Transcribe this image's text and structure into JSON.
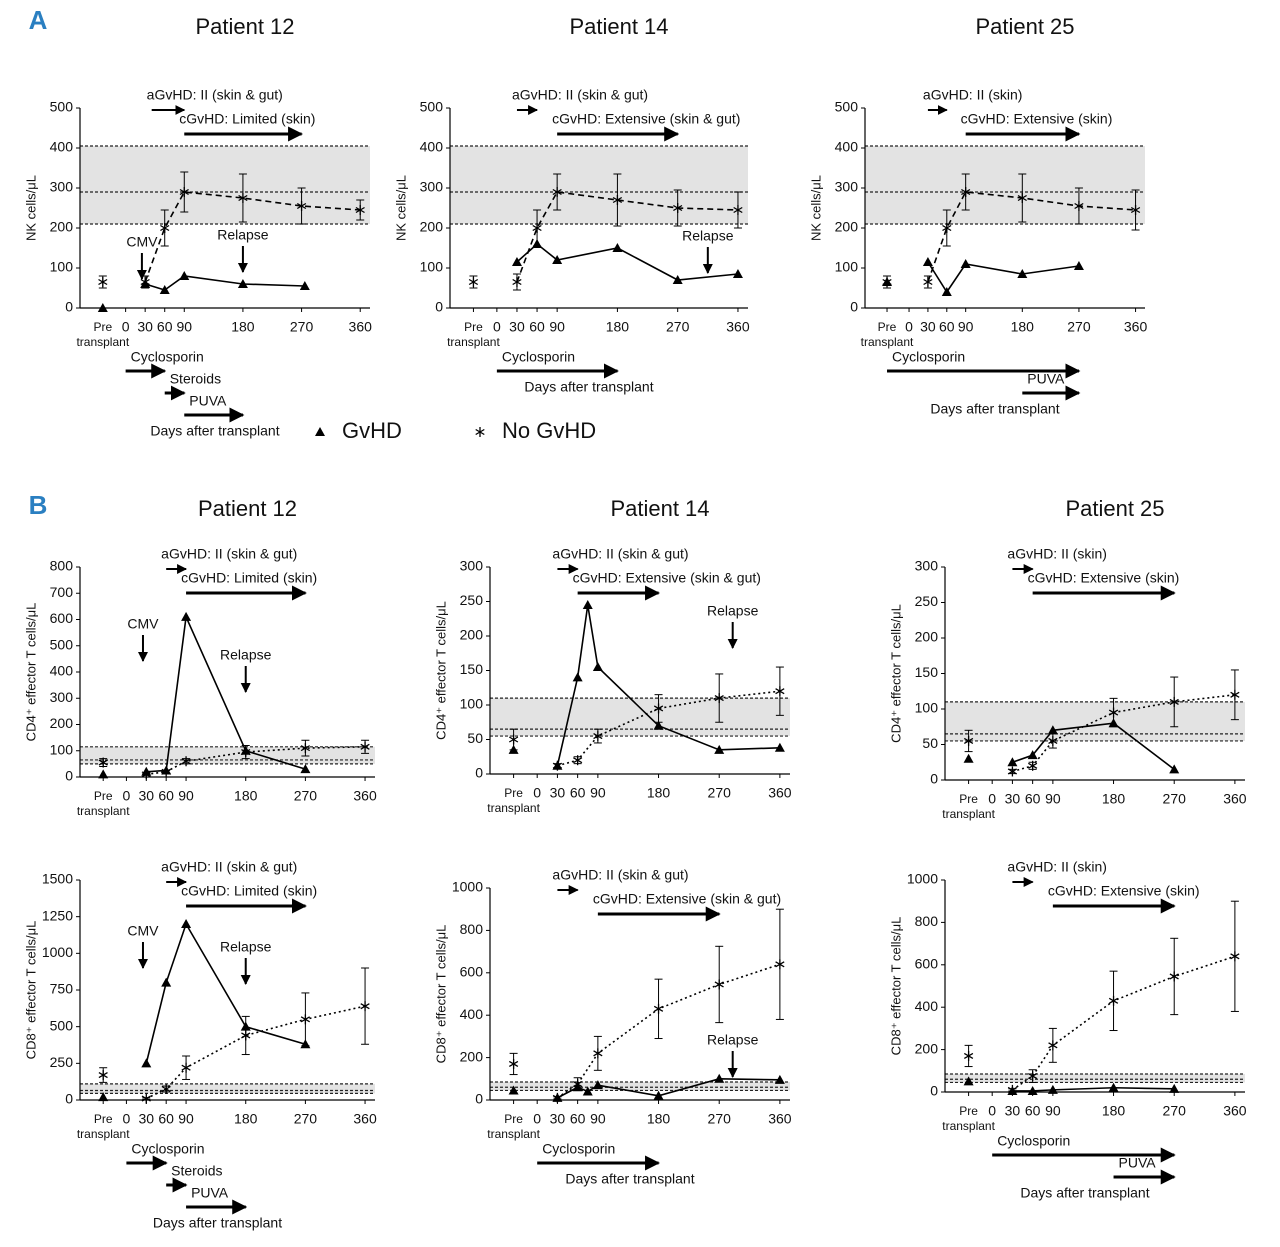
{
  "panels": [
    "A",
    "B"
  ],
  "legend": [
    {
      "name": "GvHD",
      "marker": "triangle"
    },
    {
      "name": "No GvHD",
      "marker": "asterisk"
    }
  ],
  "chart_data": [
    {
      "type": "line",
      "title": "Patient 12",
      "ylabel": "NK cells/μL",
      "ylim": [
        0,
        500
      ],
      "yticks": [
        0,
        100,
        200,
        300,
        400,
        500
      ],
      "xlim": [
        -70,
        375
      ],
      "xticks": [
        {
          "value": -35,
          "label": "Pre\ntransplant"
        },
        0,
        30,
        60,
        90,
        180,
        270,
        360
      ],
      "reference_range": {
        "low": 210,
        "mid": 290,
        "high": 405
      },
      "series": [
        {
          "name": "GvHD",
          "marker": "triangle",
          "line_style": "solid",
          "color": "#000000",
          "pre": 0,
          "x": [
            30,
            60,
            90,
            180,
            275
          ],
          "values": [
            60,
            45,
            80,
            60,
            55
          ]
        },
        {
          "name": "No GvHD",
          "marker": "asterisk",
          "line_style": "dashed",
          "color": "#000000",
          "pre": 65,
          "pre_error": 15,
          "x": [
            30,
            60,
            90,
            180,
            270,
            360
          ],
          "values": [
            65,
            200,
            290,
            275,
            255,
            245
          ],
          "errors": [
            15,
            45,
            50,
            60,
            45,
            25
          ]
        }
      ],
      "gvhd": [
        {
          "text": "aGvHD: II (skin & gut)",
          "start": 40,
          "end": 90
        },
        {
          "text": "cGvHD: Limited (skin)",
          "start": 90,
          "end": 270
        }
      ],
      "events": [
        {
          "text": "CMV",
          "day": 25
        },
        {
          "text": "Relapse",
          "day": 180
        }
      ],
      "treatments": [
        {
          "text": "Cyclosporin",
          "start": 0,
          "end": 60
        },
        {
          "text": "Steroids",
          "start": 60,
          "end": 90
        },
        {
          "text": "PUVA",
          "start": 90,
          "end": 180
        }
      ],
      "xlabel": "Days after transplant"
    },
    {
      "type": "line",
      "title": "Patient 14",
      "ylabel": "NK cells/μL",
      "ylim": [
        0,
        500
      ],
      "yticks": [
        0,
        100,
        200,
        300,
        400,
        500
      ],
      "xlim": [
        -70,
        375
      ],
      "xticks": [
        {
          "value": -35,
          "label": "Pre\ntransplant"
        },
        0,
        30,
        60,
        90,
        180,
        270,
        360
      ],
      "reference_range": {
        "low": 210,
        "mid": 290,
        "high": 405
      },
      "series": [
        {
          "name": "GvHD",
          "marker": "triangle",
          "line_style": "solid",
          "color": "#000000",
          "x": [
            30,
            60,
            90,
            180,
            270,
            360
          ],
          "values": [
            115,
            160,
            120,
            150,
            70,
            85
          ]
        },
        {
          "name": "No GvHD",
          "marker": "asterisk",
          "line_style": "dashed",
          "color": "#000000",
          "pre": 65,
          "pre_error": 15,
          "x": [
            30,
            60,
            90,
            180,
            270,
            360
          ],
          "values": [
            65,
            200,
            290,
            270,
            250,
            245
          ],
          "errors": [
            20,
            45,
            45,
            65,
            45,
            45
          ]
        }
      ],
      "gvhd": [
        {
          "text": "aGvHD: II (skin & gut)",
          "start": 30,
          "end": 60
        },
        {
          "text": "cGvHD: Extensive (skin & gut)",
          "start": 90,
          "end": 270
        }
      ],
      "events": [
        {
          "text": "Relapse",
          "day": 315
        }
      ],
      "treatments": [
        {
          "text": "Cyclosporin",
          "start": 0,
          "end": 180
        }
      ],
      "xlabel": "Days after transplant"
    },
    {
      "type": "line",
      "title": "Patient 25",
      "ylabel": "NK cells/μL",
      "ylim": [
        0,
        500
      ],
      "yticks": [
        0,
        100,
        200,
        300,
        400,
        500
      ],
      "xlim": [
        -70,
        375
      ],
      "xticks": [
        {
          "value": -35,
          "label": "Pre\ntransplant"
        },
        0,
        30,
        60,
        90,
        180,
        270,
        360
      ],
      "reference_range": {
        "low": 210,
        "mid": 290,
        "high": 405
      },
      "series": [
        {
          "name": "GvHD",
          "marker": "triangle",
          "line_style": "solid",
          "color": "#000000",
          "pre": 65,
          "x": [
            30,
            60,
            90,
            180,
            270
          ],
          "values": [
            115,
            40,
            110,
            85,
            105
          ]
        },
        {
          "name": "No GvHD",
          "marker": "asterisk",
          "line_style": "dashed",
          "color": "#000000",
          "pre": 65,
          "pre_error": 15,
          "x": [
            30,
            60,
            90,
            180,
            270,
            360
          ],
          "values": [
            65,
            200,
            290,
            275,
            255,
            245
          ],
          "errors": [
            15,
            45,
            45,
            60,
            45,
            50
          ]
        }
      ],
      "gvhd": [
        {
          "text": "aGvHD: II (skin)",
          "start": 30,
          "end": 60
        },
        {
          "text": "cGvHD: Extensive (skin)",
          "start": 90,
          "end": 270
        }
      ],
      "events": [],
      "treatments": [
        {
          "text": "Cyclosporin",
          "start": -35,
          "end": 270
        },
        {
          "text": "PUVA",
          "start": 180,
          "end": 270
        }
      ],
      "xlabel": "Days after transplant"
    },
    {
      "type": "line",
      "title": "Patient 12",
      "ylabel": "CD4⁺ effector T cells/μL",
      "ylim": [
        0,
        800
      ],
      "yticks": [
        0,
        100,
        200,
        300,
        400,
        500,
        600,
        700,
        800
      ],
      "xlim": [
        -70,
        375
      ],
      "xticks": [
        {
          "value": -35,
          "label": "Pre\ntransplant"
        },
        0,
        30,
        60,
        90,
        180,
        270,
        360
      ],
      "reference_range": {
        "low": 50,
        "mid": 65,
        "high": 115
      },
      "series": [
        {
          "name": "GvHD",
          "marker": "triangle",
          "line_style": "solid",
          "color": "#000000",
          "pre": 10,
          "x": [
            30,
            60,
            90,
            180,
            270
          ],
          "values": [
            20,
            25,
            610,
            100,
            30
          ]
        },
        {
          "name": "No GvHD",
          "marker": "asterisk",
          "line_style": "dotted",
          "color": "#000000",
          "pre": 55,
          "pre_error": 15,
          "x": [
            30,
            60,
            90,
            180,
            270,
            360
          ],
          "values": [
            10,
            20,
            60,
            95,
            110,
            115
          ],
          "errors": [
            3,
            5,
            10,
            25,
            30,
            25
          ]
        }
      ],
      "gvhd": [
        {
          "text": "aGvHD: II (skin & gut)",
          "start": 60,
          "end": 90
        },
        {
          "text": "cGvHD: Limited (skin)",
          "start": 90,
          "end": 270
        }
      ],
      "events": [
        {
          "text": "CMV",
          "day": 25
        },
        {
          "text": "Relapse",
          "day": 180
        }
      ],
      "treatments": []
    },
    {
      "type": "line",
      "title": "Patient 14",
      "ylabel": "CD4⁺ effector T cells/μL",
      "ylim": [
        0,
        300
      ],
      "yticks": [
        0,
        50,
        100,
        150,
        200,
        250,
        300
      ],
      "xlim": [
        -70,
        375
      ],
      "xticks": [
        {
          "value": -35,
          "label": "Pre\ntransplant"
        },
        0,
        30,
        60,
        90,
        180,
        270,
        360
      ],
      "reference_range": {
        "low": 55,
        "mid": 65,
        "high": 110
      },
      "series": [
        {
          "name": "GvHD",
          "marker": "triangle",
          "line_style": "solid",
          "color": "#000000",
          "pre": 35,
          "x": [
            30,
            60,
            75,
            90,
            180,
            270,
            360
          ],
          "values": [
            12,
            140,
            245,
            155,
            70,
            35,
            38
          ]
        },
        {
          "name": "No GvHD",
          "marker": "asterisk",
          "line_style": "dotted",
          "color": "#000000",
          "pre": 50,
          "pre_error": 15,
          "x": [
            30,
            60,
            90,
            180,
            270,
            360
          ],
          "values": [
            12,
            20,
            55,
            95,
            110,
            120
          ],
          "errors": [
            3,
            5,
            10,
            20,
            35,
            35
          ]
        }
      ],
      "gvhd": [
        {
          "text": "aGvHD: II (skin & gut)",
          "start": 30,
          "end": 60
        },
        {
          "text": "cGvHD: Extensive (skin & gut)",
          "start": 60,
          "end": 180
        }
      ],
      "events": [
        {
          "text": "Relapse",
          "day": 290
        }
      ],
      "treatments": []
    },
    {
      "type": "line",
      "title": "Patient 25",
      "ylabel": "CD4⁺ effector T cells/μL",
      "ylim": [
        0,
        300
      ],
      "yticks": [
        0,
        50,
        100,
        150,
        200,
        250,
        300
      ],
      "xlim": [
        -70,
        375
      ],
      "xticks": [
        {
          "value": -35,
          "label": "Pre\ntransplant"
        },
        0,
        30,
        60,
        90,
        180,
        270,
        360
      ],
      "reference_range": {
        "low": 55,
        "mid": 65,
        "high": 110
      },
      "series": [
        {
          "name": "GvHD",
          "marker": "triangle",
          "line_style": "solid",
          "color": "#000000",
          "pre": 30,
          "x": [
            30,
            60,
            90,
            180,
            270
          ],
          "values": [
            25,
            35,
            70,
            80,
            15
          ]
        },
        {
          "name": "No GvHD",
          "marker": "asterisk",
          "line_style": "dotted",
          "color": "#000000",
          "pre": 55,
          "pre_error": 15,
          "x": [
            30,
            60,
            90,
            180,
            270,
            360
          ],
          "values": [
            12,
            20,
            55,
            95,
            110,
            120
          ],
          "errors": [
            3,
            5,
            10,
            20,
            35,
            35
          ]
        }
      ],
      "gvhd": [
        {
          "text": "aGvHD: II (skin)",
          "start": 30,
          "end": 60
        },
        {
          "text": "cGvHD: Extensive (skin)",
          "start": 60,
          "end": 270
        }
      ],
      "events": [],
      "treatments": []
    },
    {
      "type": "line",
      "ylabel": "CD8⁺ effector T cells/μL",
      "ylim": [
        0,
        1500
      ],
      "yticks": [
        0,
        250,
        500,
        750,
        1000,
        1250,
        1500
      ],
      "xlim": [
        -70,
        375
      ],
      "xticks": [
        {
          "value": -35,
          "label": "Pre\ntransplant"
        },
        0,
        30,
        60,
        90,
        180,
        270,
        360
      ],
      "reference_range": {
        "low": 45,
        "mid": 65,
        "high": 110
      },
      "series": [
        {
          "name": "GvHD",
          "marker": "triangle",
          "line_style": "solid",
          "color": "#000000",
          "pre": 20,
          "x": [
            30,
            60,
            90,
            180,
            270
          ],
          "values": [
            250,
            800,
            1200,
            500,
            380
          ]
        },
        {
          "name": "No GvHD",
          "marker": "asterisk",
          "line_style": "dotted",
          "color": "#000000",
          "pre": 170,
          "pre_error": 50,
          "x": [
            30,
            60,
            90,
            180,
            270,
            360
          ],
          "values": [
            10,
            75,
            220,
            440,
            550,
            640
          ],
          "errors": [
            5,
            20,
            80,
            130,
            180,
            260
          ]
        }
      ],
      "gvhd": [
        {
          "text": "aGvHD: II (skin & gut)",
          "start": 60,
          "end": 90
        },
        {
          "text": "cGvHD: Limited (skin)",
          "start": 90,
          "end": 270
        }
      ],
      "events": [
        {
          "text": "CMV",
          "day": 25
        },
        {
          "text": "Relapse",
          "day": 180
        }
      ],
      "treatments": [
        {
          "text": "Cyclosporin",
          "start": 0,
          "end": 60
        },
        {
          "text": "Steroids",
          "start": 60,
          "end": 90
        },
        {
          "text": "PUVA",
          "start": 90,
          "end": 180
        }
      ],
      "xlabel": "Days after transplant"
    },
    {
      "type": "line",
      "ylabel": "CD8⁺ effector T cells/μL",
      "ylim": [
        0,
        1000
      ],
      "yticks": [
        0,
        200,
        400,
        600,
        800,
        1000
      ],
      "xlim": [
        -70,
        375
      ],
      "xticks": [
        {
          "value": -35,
          "label": "Pre\ntransplant"
        },
        0,
        30,
        60,
        90,
        180,
        270,
        360
      ],
      "reference_range": {
        "low": 45,
        "mid": 60,
        "high": 85
      },
      "series": [
        {
          "name": "GvHD",
          "marker": "triangle",
          "line_style": "solid",
          "color": "#000000",
          "pre": 45,
          "x": [
            30,
            60,
            75,
            90,
            180,
            270,
            360
          ],
          "values": [
            10,
            60,
            40,
            70,
            20,
            100,
            95
          ]
        },
        {
          "name": "No GvHD",
          "marker": "asterisk",
          "line_style": "dotted",
          "color": "#000000",
          "pre": 170,
          "pre_error": 50,
          "x": [
            30,
            60,
            90,
            180,
            270,
            360
          ],
          "values": [
            10,
            75,
            220,
            430,
            545,
            640
          ],
          "errors": [
            5,
            30,
            80,
            140,
            180,
            260
          ]
        }
      ],
      "gvhd": [
        {
          "text": "aGvHD: II (skin & gut)",
          "start": 30,
          "end": 60
        },
        {
          "text": "cGvHD: Extensive (skin & gut)",
          "start": 90,
          "end": 270
        }
      ],
      "events": [
        {
          "text": "Relapse",
          "day": 290
        }
      ],
      "treatments": [
        {
          "text": "Cyclosporin",
          "start": 0,
          "end": 180
        }
      ],
      "xlabel": "Days after transplant"
    },
    {
      "type": "line",
      "ylabel": "CD8⁺ effector T cells/μL",
      "ylim": [
        0,
        1000
      ],
      "yticks": [
        0,
        200,
        400,
        600,
        800,
        1000
      ],
      "xlim": [
        -70,
        375
      ],
      "xticks": [
        {
          "value": -35,
          "label": "Pre\ntransplant"
        },
        0,
        30,
        60,
        90,
        180,
        270,
        360
      ],
      "reference_range": {
        "low": 45,
        "mid": 60,
        "high": 85
      },
      "series": [
        {
          "name": "GvHD",
          "marker": "triangle",
          "line_style": "solid",
          "color": "#000000",
          "pre": 50,
          "x": [
            30,
            60,
            90,
            180,
            270
          ],
          "values": [
            5,
            5,
            10,
            20,
            15
          ]
        },
        {
          "name": "No GvHD",
          "marker": "asterisk",
          "line_style": "dotted",
          "color": "#000000",
          "pre": 170,
          "pre_error": 50,
          "x": [
            30,
            60,
            90,
            180,
            270,
            360
          ],
          "values": [
            10,
            75,
            220,
            430,
            545,
            640
          ],
          "errors": [
            5,
            30,
            80,
            140,
            180,
            260
          ]
        }
      ],
      "gvhd": [
        {
          "text": "aGvHD: II (skin)",
          "start": 30,
          "end": 60
        },
        {
          "text": "cGvHD: Extensive (skin)",
          "start": 90,
          "end": 270
        }
      ],
      "events": [],
      "treatments": [
        {
          "text": "Cyclosporin",
          "start": 0,
          "end": 270
        },
        {
          "text": "PUVA",
          "start": 180,
          "end": 270
        }
      ],
      "xlabel": "Days after transplant"
    }
  ]
}
